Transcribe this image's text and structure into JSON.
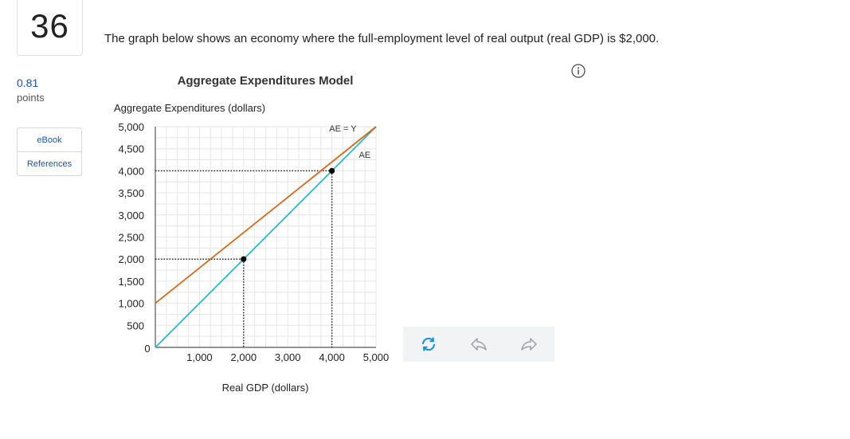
{
  "question": {
    "number": "36",
    "points_value": "0.81",
    "points_label": "points",
    "text": "The graph below shows an economy where the full-employment level of real output (real GDP) is $2,000."
  },
  "sidebar": {
    "buttons": [
      {
        "label": "eBook"
      },
      {
        "label": "References"
      }
    ]
  },
  "icons": {
    "info": "info-icon",
    "reset": "refresh-icon",
    "undo": "undo-icon",
    "redo": "redo-icon"
  },
  "colors": {
    "ae_line": "#d4691a",
    "ae_equals_y_line": "#1fbfcf",
    "link": "#1a56a8"
  },
  "chart_data": {
    "type": "line",
    "title": "Aggregate Expenditures Model",
    "ylabel": "Aggregate Expenditures (dollars)",
    "xlabel": "Real GDP (dollars)",
    "xlim": [
      0,
      5000
    ],
    "ylim": [
      0,
      5000
    ],
    "grid": true,
    "x_ticks": [
      "1,000",
      "2,000",
      "3,000",
      "4,000",
      "5,000"
    ],
    "y_ticks": [
      "5,000",
      "4,500",
      "4,000",
      "3,500",
      "3,000",
      "2,500",
      "2,000",
      "1,500",
      "1,000",
      "500"
    ],
    "origin_label": "0",
    "series": [
      {
        "name": "AE = Y",
        "x": [
          0,
          5000
        ],
        "y": [
          0,
          5000
        ]
      },
      {
        "name": "AE",
        "x": [
          0,
          5000
        ],
        "y": [
          1000,
          5000
        ]
      }
    ],
    "points": [
      {
        "x": 2000,
        "y": 2000
      },
      {
        "x": 4000,
        "y": 4000
      }
    ],
    "guides": [
      {
        "x": 2000,
        "y": 2000
      },
      {
        "x": 4000,
        "y": 4000
      }
    ]
  }
}
